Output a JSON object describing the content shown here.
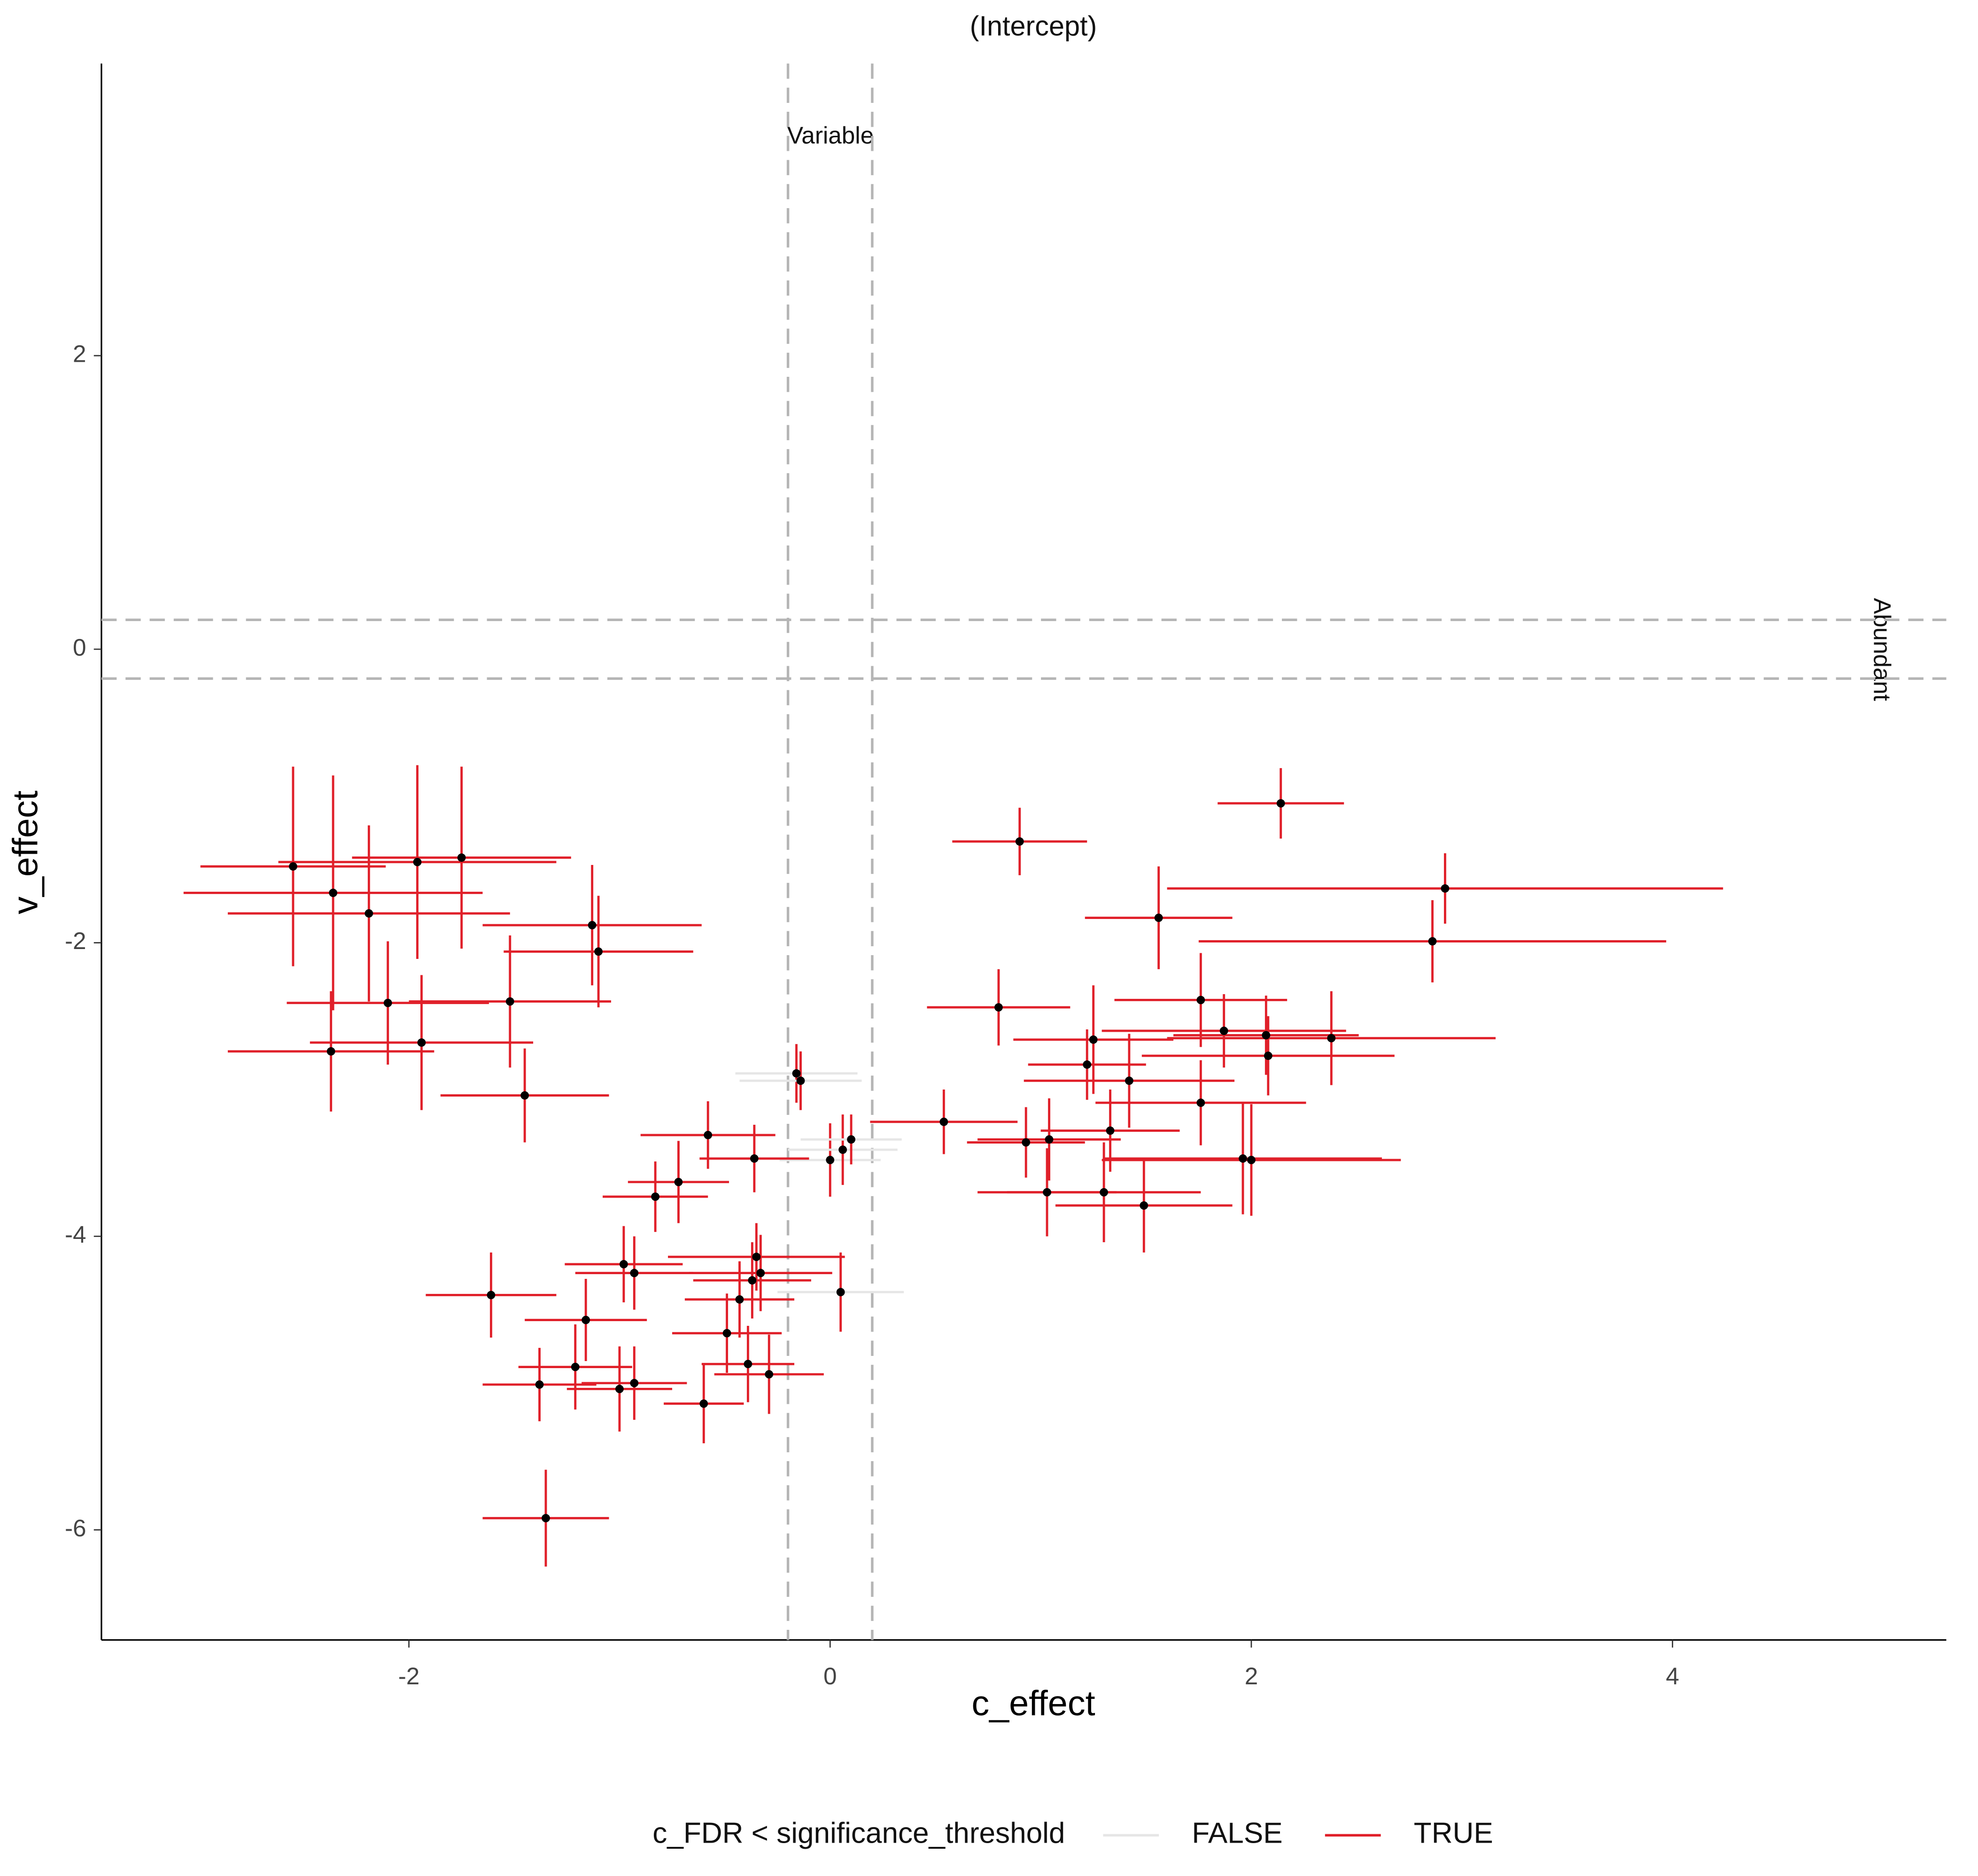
{
  "chart_data": {
    "type": "scatter",
    "title": "(Intercept)",
    "x_label": "c_effect",
    "y_label": "v_effect",
    "xlim": [
      -3.46,
      5.3
    ],
    "ylim": [
      -6.75,
      3.99
    ],
    "xticks": [
      -2,
      0,
      2,
      4
    ],
    "yticks": [
      -6,
      -4,
      -2,
      0,
      2
    ],
    "grid": false,
    "vlines": [
      -0.2,
      0.2
    ],
    "hlines": [
      -0.2,
      0.2
    ],
    "annotations": [
      "Variable",
      "Abundant"
    ],
    "legend_title": "c_FDR < significance_threshold",
    "legend": "bottom",
    "point_color": "#000000",
    "v_error_color": "#e0202a",
    "line_color": "#b5b5b5",
    "series": [
      {
        "name": "FALSE",
        "color": "#e6e6e6",
        "x": [
          -0.16,
          -0.14,
          0.0,
          0.06,
          0.1,
          0.05
        ],
        "values": [
          -2.89,
          -2.94,
          -3.48,
          -3.41,
          -3.34,
          -4.38
        ],
        "xerr": [
          0.29,
          0.29,
          0.24,
          0.26,
          0.24,
          0.3
        ],
        "yerr": [
          0.2,
          0.2,
          0.25,
          0.24,
          0.17,
          0.27
        ]
      },
      {
        "name": "TRUE",
        "color": "#e0202a",
        "x": [
          -2.55,
          -2.36,
          -2.19,
          -1.96,
          -1.75,
          -2.1,
          -2.37,
          -1.94,
          -1.52,
          -1.13,
          -1.1,
          -1.45,
          -0.58,
          -0.36,
          -0.72,
          -0.83,
          0.54,
          0.9,
          0.8,
          2.14,
          1.56,
          2.92,
          2.86,
          1.76,
          1.87,
          2.07,
          2.08,
          2.38,
          1.25,
          1.22,
          1.42,
          1.76,
          1.33,
          0.93,
          1.04,
          1.96,
          2.0,
          1.03,
          1.3,
          1.49,
          -1.61,
          -1.16,
          -0.98,
          -0.93,
          -0.35,
          -0.33,
          -0.37,
          -0.43,
          -0.49,
          -0.39,
          -0.29,
          -1.21,
          -1.38,
          -1.0,
          -0.93,
          -0.6,
          -1.35
        ],
        "values": [
          -1.48,
          -1.66,
          -1.8,
          -1.45,
          -1.42,
          -2.41,
          -2.74,
          -2.68,
          -2.4,
          -1.88,
          -2.06,
          -3.04,
          -3.31,
          -3.47,
          -3.63,
          -3.73,
          -3.22,
          -1.31,
          -2.44,
          -1.05,
          -1.83,
          -1.63,
          -1.99,
          -2.39,
          -2.6,
          -2.63,
          -2.77,
          -2.65,
          -2.66,
          -2.83,
          -2.94,
          -3.09,
          -3.28,
          -3.36,
          -3.34,
          -3.47,
          -3.48,
          -3.7,
          -3.7,
          -3.79,
          -4.4,
          -4.57,
          -4.19,
          -4.25,
          -4.14,
          -4.25,
          -4.3,
          -4.43,
          -4.66,
          -4.87,
          -4.94,
          -4.89,
          -5.01,
          -5.04,
          -5.0,
          -5.14,
          -5.92
        ],
        "xerr": [
          0.44,
          0.71,
          0.67,
          0.66,
          0.52,
          0.48,
          0.49,
          0.53,
          0.48,
          0.52,
          0.45,
          0.4,
          0.32,
          0.26,
          0.24,
          0.25,
          0.35,
          0.32,
          0.34,
          0.3,
          0.35,
          1.32,
          1.11,
          0.41,
          0.58,
          0.44,
          0.6,
          0.78,
          0.38,
          0.28,
          0.5,
          0.5,
          0.33,
          0.28,
          0.34,
          0.66,
          0.71,
          0.33,
          0.46,
          0.42,
          0.31,
          0.29,
          0.28,
          0.28,
          0.42,
          0.34,
          0.28,
          0.26,
          0.26,
          0.22,
          0.26,
          0.27,
          0.27,
          0.25,
          0.25,
          0.19,
          0.3
        ],
        "yerr": [
          0.68,
          0.8,
          0.6,
          0.66,
          0.62,
          0.42,
          0.41,
          0.46,
          0.45,
          0.41,
          0.38,
          0.32,
          0.23,
          0.23,
          0.28,
          0.24,
          0.22,
          0.23,
          0.26,
          0.24,
          0.35,
          0.24,
          0.28,
          0.32,
          0.25,
          0.27,
          0.27,
          0.32,
          0.37,
          0.24,
          0.32,
          0.29,
          0.28,
          0.24,
          0.28,
          0.38,
          0.38,
          0.3,
          0.34,
          0.32,
          0.29,
          0.28,
          0.26,
          0.25,
          0.23,
          0.26,
          0.26,
          0.26,
          0.27,
          0.26,
          0.27,
          0.29,
          0.25,
          0.29,
          0.25,
          0.27,
          0.33
        ]
      }
    ]
  }
}
